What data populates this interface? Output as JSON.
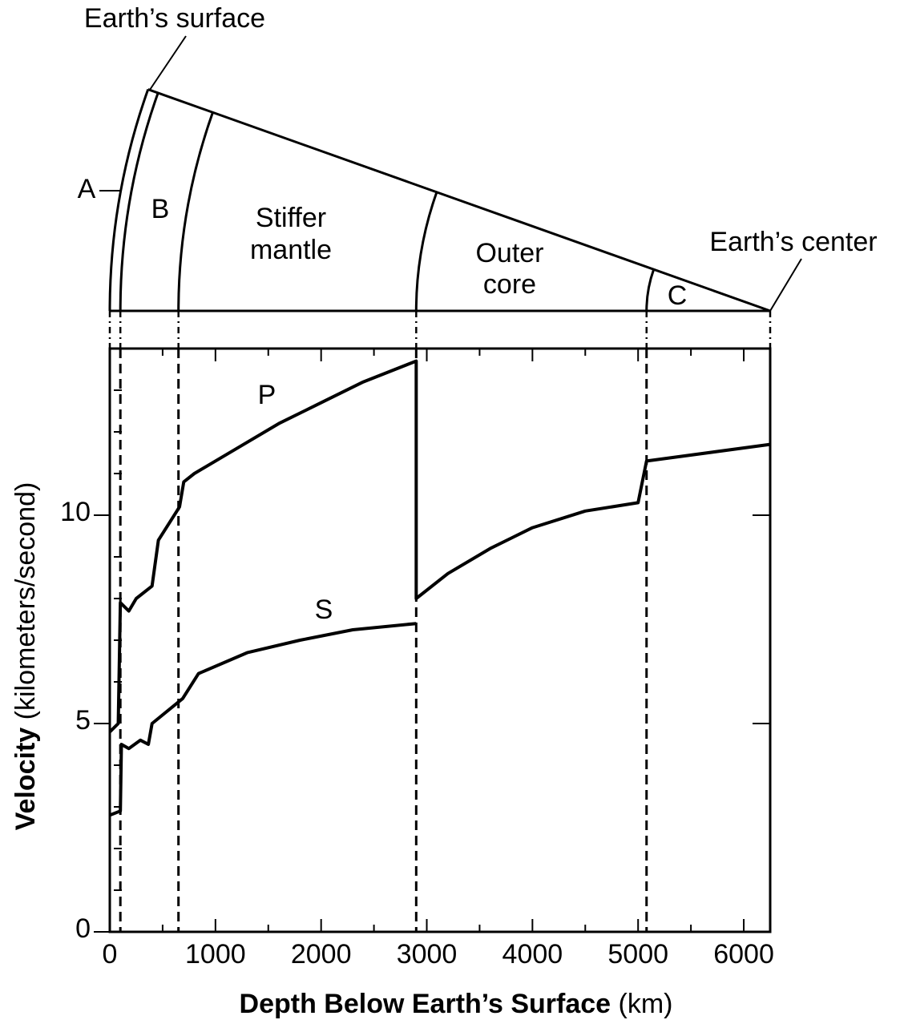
{
  "chart_data": {
    "type": "line",
    "xlabel": {
      "bold": "Depth Below Earth’s Surface",
      "text": "(km)"
    },
    "ylabel": {
      "bold": "Velocity",
      "text": "(kilometers/second)"
    },
    "xlim": [
      0,
      6250
    ],
    "xticks": [
      0,
      1000,
      2000,
      3000,
      4000,
      5000,
      6000
    ],
    "xticks_minor": [
      500,
      1500,
      2500,
      3500,
      4500,
      5500
    ],
    "ylim": [
      0,
      14
    ],
    "yticks": [
      0,
      5,
      10
    ],
    "yticks_minor": [
      1,
      2,
      3,
      4,
      6,
      7,
      8,
      9,
      11,
      12,
      13
    ],
    "color": "#000000",
    "boundaries": [
      100,
      650,
      2900,
      5080
    ],
    "series": [
      {
        "name": "P",
        "x": [
          0,
          80,
          100,
          180,
          250,
          400,
          460,
          660,
          700,
          800,
          1200,
          1600,
          2000,
          2400,
          2900,
          2900,
          3200,
          3600,
          4000,
          4500,
          5000,
          5080,
          6250
        ],
        "values": [
          4.8,
          5.0,
          7.9,
          7.7,
          8.0,
          8.3,
          9.4,
          10.2,
          10.8,
          11.0,
          11.6,
          12.2,
          12.7,
          13.2,
          13.7,
          8.0,
          8.6,
          9.2,
          9.7,
          10.1,
          10.3,
          11.3,
          11.7
        ]
      },
      {
        "name": "S",
        "x": [
          0,
          100,
          110,
          180,
          290,
          365,
          400,
          690,
          840,
          1300,
          1800,
          2300,
          2900
        ],
        "values": [
          2.8,
          2.9,
          4.5,
          4.4,
          4.6,
          4.5,
          5.0,
          5.6,
          6.2,
          6.7,
          7.0,
          7.25,
          7.4
        ]
      }
    ]
  },
  "diagram": {
    "earth_surface": "Earth’s surface",
    "earth_center": "Earth’s center",
    "layer_a": "A",
    "layer_b": "B",
    "stiffer_mantle": [
      "Stiffer",
      "mantle"
    ],
    "outer_core": [
      "Outer",
      "core"
    ],
    "layer_c": "C"
  }
}
